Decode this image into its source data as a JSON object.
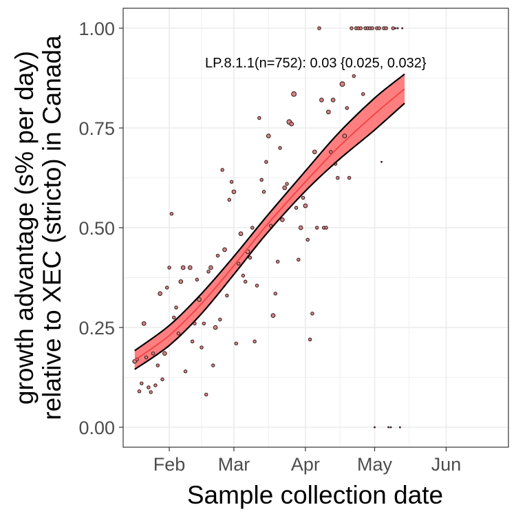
{
  "chart_data": {
    "type": "scatter",
    "title": "",
    "xlabel": "Sample collection date",
    "ylabel_lines": [
      "growth advantage (s% per day)",
      "relative to XEC (stricto) in Canada"
    ],
    "xlim": [
      "2025-01-12",
      "2025-06-28"
    ],
    "ylim": [
      -0.05,
      1.05
    ],
    "x_ticks": [
      {
        "date": "2025-02-01",
        "label": "Feb"
      },
      {
        "date": "2025-03-01",
        "label": "Mar"
      },
      {
        "date": "2025-04-01",
        "label": "Apr"
      },
      {
        "date": "2025-05-01",
        "label": "May"
      },
      {
        "date": "2025-06-01",
        "label": "Jun"
      }
    ],
    "y_ticks": [
      {
        "value": 0.0,
        "label": "0.00"
      },
      {
        "value": 0.25,
        "label": "0.25"
      },
      {
        "value": 0.5,
        "label": "0.50"
      },
      {
        "value": 0.75,
        "label": "0.75"
      },
      {
        "value": 1.0,
        "label": "1.00"
      }
    ],
    "grid": true,
    "annotation": "LP.8.1.1(n=752): 0.03 {0.025, 0.032}",
    "colors": {
      "line": "#f0474a",
      "ribbon": "#ff7f80",
      "ribbon_edge": "#000000",
      "point_fill": "#d98686",
      "point_edge": "#3a2020",
      "grid": "#ebebeb",
      "panel_border": "#333333"
    },
    "fit": {
      "x": [
        "2025-01-17",
        "2025-02-01",
        "2025-02-15",
        "2025-03-01",
        "2025-03-15",
        "2025-04-01",
        "2025-04-15",
        "2025-05-01",
        "2025-05-14"
      ],
      "y": [
        0.168,
        0.23,
        0.31,
        0.405,
        0.505,
        0.615,
        0.7,
        0.785,
        0.848
      ],
      "lower": [
        0.145,
        0.205,
        0.285,
        0.383,
        0.484,
        0.592,
        0.668,
        0.745,
        0.812
      ],
      "upper": [
        0.192,
        0.255,
        0.335,
        0.428,
        0.527,
        0.642,
        0.735,
        0.825,
        0.885
      ]
    },
    "points": [
      {
        "x": "2025-01-17",
        "y": 0.165,
        "n": 2
      },
      {
        "x": "2025-01-18",
        "y": 0.17,
        "n": 1
      },
      {
        "x": "2025-01-19",
        "y": 0.09,
        "n": 1
      },
      {
        "x": "2025-01-20",
        "y": 0.11,
        "n": 1
      },
      {
        "x": "2025-01-21",
        "y": 0.26,
        "n": 2
      },
      {
        "x": "2025-01-22",
        "y": 0.175,
        "n": 1
      },
      {
        "x": "2025-01-23",
        "y": 0.1,
        "n": 1
      },
      {
        "x": "2025-01-24",
        "y": 0.088,
        "n": 1
      },
      {
        "x": "2025-01-25",
        "y": 0.185,
        "n": 1
      },
      {
        "x": "2025-01-26",
        "y": 0.105,
        "n": 1
      },
      {
        "x": "2025-01-27",
        "y": 0.155,
        "n": 1
      },
      {
        "x": "2025-01-28",
        "y": 0.335,
        "n": 2
      },
      {
        "x": "2025-01-29",
        "y": 0.12,
        "n": 1
      },
      {
        "x": "2025-01-30",
        "y": 0.185,
        "n": 2
      },
      {
        "x": "2025-01-31",
        "y": 0.35,
        "n": 1
      },
      {
        "x": "2025-02-01",
        "y": 0.4,
        "n": 1
      },
      {
        "x": "2025-02-02",
        "y": 0.535,
        "n": 1
      },
      {
        "x": "2025-02-03",
        "y": 0.275,
        "n": 1
      },
      {
        "x": "2025-02-04",
        "y": 0.3,
        "n": 1
      },
      {
        "x": "2025-02-05",
        "y": 0.235,
        "n": 1
      },
      {
        "x": "2025-02-06",
        "y": 0.365,
        "n": 2
      },
      {
        "x": "2025-02-07",
        "y": 0.4,
        "n": 2
      },
      {
        "x": "2025-02-08",
        "y": 0.14,
        "n": 1
      },
      {
        "x": "2025-02-10",
        "y": 0.4,
        "n": 2
      },
      {
        "x": "2025-02-11",
        "y": 0.215,
        "n": 1
      },
      {
        "x": "2025-02-12",
        "y": 0.26,
        "n": 1
      },
      {
        "x": "2025-02-13",
        "y": 0.37,
        "n": 1
      },
      {
        "x": "2025-02-14",
        "y": 0.32,
        "n": 2
      },
      {
        "x": "2025-02-15",
        "y": 0.2,
        "n": 1
      },
      {
        "x": "2025-02-16",
        "y": 0.26,
        "n": 1
      },
      {
        "x": "2025-02-17",
        "y": 0.082,
        "n": 1
      },
      {
        "x": "2025-02-18",
        "y": 0.39,
        "n": 1
      },
      {
        "x": "2025-02-19",
        "y": 0.4,
        "n": 2
      },
      {
        "x": "2025-02-20",
        "y": 0.155,
        "n": 1
      },
      {
        "x": "2025-02-21",
        "y": 0.25,
        "n": 2
      },
      {
        "x": "2025-02-22",
        "y": 0.43,
        "n": 1
      },
      {
        "x": "2025-02-23",
        "y": 0.27,
        "n": 1
      },
      {
        "x": "2025-02-24",
        "y": 0.645,
        "n": 1
      },
      {
        "x": "2025-02-25",
        "y": 0.445,
        "n": 2
      },
      {
        "x": "2025-02-26",
        "y": 0.33,
        "n": 1
      },
      {
        "x": "2025-02-27",
        "y": 0.57,
        "n": 1
      },
      {
        "x": "2025-02-28",
        "y": 0.615,
        "n": 1
      },
      {
        "x": "2025-03-01",
        "y": 0.59,
        "n": 2
      },
      {
        "x": "2025-03-02",
        "y": 0.21,
        "n": 1
      },
      {
        "x": "2025-03-03",
        "y": 0.41,
        "n": 1
      },
      {
        "x": "2025-03-04",
        "y": 0.485,
        "n": 2
      },
      {
        "x": "2025-03-05",
        "y": 0.38,
        "n": 1
      },
      {
        "x": "2025-03-06",
        "y": 0.365,
        "n": 1
      },
      {
        "x": "2025-03-07",
        "y": 0.44,
        "n": 2
      },
      {
        "x": "2025-03-08",
        "y": 0.425,
        "n": 1
      },
      {
        "x": "2025-03-09",
        "y": 0.5,
        "n": 1
      },
      {
        "x": "2025-03-10",
        "y": 0.215,
        "n": 1
      },
      {
        "x": "2025-03-11",
        "y": 0.355,
        "n": 1
      },
      {
        "x": "2025-03-12",
        "y": 0.775,
        "n": 1
      },
      {
        "x": "2025-03-13",
        "y": 0.62,
        "n": 1
      },
      {
        "x": "2025-03-14",
        "y": 0.59,
        "n": 1
      },
      {
        "x": "2025-03-15",
        "y": 0.665,
        "n": 1
      },
      {
        "x": "2025-03-16",
        "y": 0.73,
        "n": 2
      },
      {
        "x": "2025-03-17",
        "y": 0.505,
        "n": 1
      },
      {
        "x": "2025-03-18",
        "y": 0.28,
        "n": 2
      },
      {
        "x": "2025-03-19",
        "y": 0.335,
        "n": 1
      },
      {
        "x": "2025-03-20",
        "y": 0.415,
        "n": 1
      },
      {
        "x": "2025-03-21",
        "y": 0.7,
        "n": 1
      },
      {
        "x": "2025-03-22",
        "y": 0.52,
        "n": 2
      },
      {
        "x": "2025-03-23",
        "y": 0.6,
        "n": 2
      },
      {
        "x": "2025-03-24",
        "y": 0.61,
        "n": 1
      },
      {
        "x": "2025-03-25",
        "y": 0.765,
        "n": 3
      },
      {
        "x": "2025-03-26",
        "y": 0.76,
        "n": 2
      },
      {
        "x": "2025-03-27",
        "y": 0.835,
        "n": 3
      },
      {
        "x": "2025-03-28",
        "y": 0.55,
        "n": 1
      },
      {
        "x": "2025-03-29",
        "y": 0.42,
        "n": 1
      },
      {
        "x": "2025-03-30",
        "y": 0.5,
        "n": 2
      },
      {
        "x": "2025-03-31",
        "y": 0.575,
        "n": 1
      },
      {
        "x": "2025-04-01",
        "y": 0.555,
        "n": 2
      },
      {
        "x": "2025-04-02",
        "y": 0.47,
        "n": 1
      },
      {
        "x": "2025-04-03",
        "y": 0.22,
        "n": 1
      },
      {
        "x": "2025-04-04",
        "y": 0.285,
        "n": 1
      },
      {
        "x": "2025-04-05",
        "y": 0.69,
        "n": 2
      },
      {
        "x": "2025-04-06",
        "y": 0.5,
        "n": 1
      },
      {
        "x": "2025-04-07",
        "y": 1.0,
        "n": 1
      },
      {
        "x": "2025-04-08",
        "y": 0.82,
        "n": 2
      },
      {
        "x": "2025-04-09",
        "y": 0.5,
        "n": 1
      },
      {
        "x": "2025-04-10",
        "y": 0.5,
        "n": 1
      },
      {
        "x": "2025-04-11",
        "y": 0.79,
        "n": 2
      },
      {
        "x": "2025-04-12",
        "y": 0.69,
        "n": 1
      },
      {
        "x": "2025-04-13",
        "y": 0.82,
        "n": 2
      },
      {
        "x": "2025-04-14",
        "y": 0.66,
        "n": 1
      },
      {
        "x": "2025-04-15",
        "y": 0.625,
        "n": 1
      },
      {
        "x": "2025-04-17",
        "y": 0.86,
        "n": 3
      },
      {
        "x": "2025-04-18",
        "y": 0.73,
        "n": 2
      },
      {
        "x": "2025-04-19",
        "y": 0.8,
        "n": 1
      },
      {
        "x": "2025-04-20",
        "y": 0.625,
        "n": 1
      },
      {
        "x": "2025-04-21",
        "y": 1.0,
        "n": 1
      },
      {
        "x": "2025-04-22",
        "y": 0.88,
        "n": 1
      },
      {
        "x": "2025-04-23",
        "y": 1.0,
        "n": 1
      },
      {
        "x": "2025-04-24",
        "y": 1.0,
        "n": 1
      },
      {
        "x": "2025-04-25",
        "y": 1.0,
        "n": 1
      },
      {
        "x": "2025-04-26",
        "y": 0.835,
        "n": 1
      },
      {
        "x": "2025-04-27",
        "y": 1.0,
        "n": 1
      },
      {
        "x": "2025-04-28",
        "y": 1.0,
        "n": 1
      },
      {
        "x": "2025-04-29",
        "y": 1.0,
        "n": 1
      },
      {
        "x": "2025-04-30",
        "y": 1.0,
        "n": 1
      },
      {
        "x": "2025-05-01",
        "y": 0.0,
        "n": 0
      },
      {
        "x": "2025-05-02",
        "y": 1.0,
        "n": 1
      },
      {
        "x": "2025-05-03",
        "y": 1.0,
        "n": 1
      },
      {
        "x": "2025-05-04",
        "y": 0.665,
        "n": 0
      },
      {
        "x": "2025-05-05",
        "y": 1.0,
        "n": 1
      },
      {
        "x": "2025-05-06",
        "y": 1.0,
        "n": 1
      },
      {
        "x": "2025-05-07",
        "y": 0.0,
        "n": 0
      },
      {
        "x": "2025-05-08",
        "y": 0.0,
        "n": 0
      },
      {
        "x": "2025-05-09",
        "y": 1.0,
        "n": 1
      },
      {
        "x": "2025-05-10",
        "y": 1.0,
        "n": 0
      },
      {
        "x": "2025-05-11",
        "y": 1.0,
        "n": 0
      },
      {
        "x": "2025-05-12",
        "y": 0.0,
        "n": 0
      },
      {
        "x": "2025-05-13",
        "y": 1.0,
        "n": 0
      }
    ]
  }
}
